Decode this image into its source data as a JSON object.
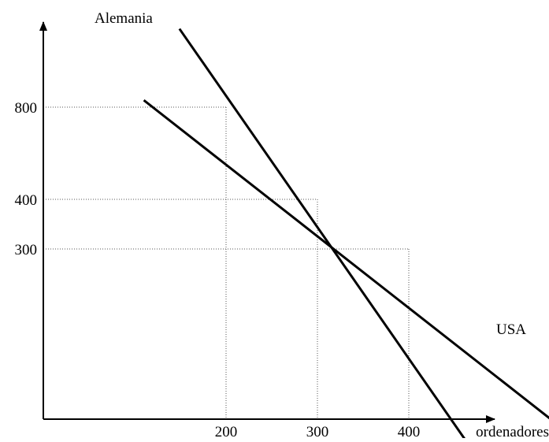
{
  "chart_data": {
    "type": "line",
    "xlabel": "ordenadores",
    "ylabel": "",
    "x_ticks": [
      200,
      300,
      400
    ],
    "y_ticks": [
      300,
      400,
      800
    ],
    "grid": false,
    "series": [
      {
        "name": "Alemania",
        "points": [
          [
            149,
            1140
          ],
          [
            470,
            -57
          ]
        ]
      },
      {
        "name": "USA",
        "points": [
          [
            110,
            830
          ],
          [
            600,
            -58
          ]
        ]
      }
    ],
    "reference_lines": [
      {
        "x": 200,
        "y": 800
      },
      {
        "x": 300,
        "y": 400
      },
      {
        "x": 400,
        "y": 300
      }
    ],
    "colors": {
      "axis": "#000000",
      "lines": "#000000",
      "guides": "#555555"
    }
  }
}
